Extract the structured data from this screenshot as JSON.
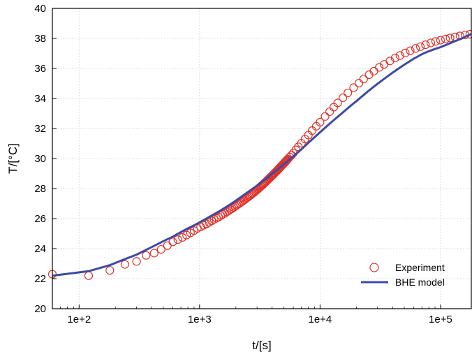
{
  "chart_data": {
    "type": "scatter",
    "title": "",
    "xlabel": "t/[s]",
    "ylabel": "T/[°C]",
    "xscale": "log",
    "xlim": [
      60,
      180000
    ],
    "ylim": [
      20,
      40
    ],
    "grid": true,
    "legend_position": "bottom-right",
    "x_ticks": [
      {
        "value": 100,
        "label": "1e+2"
      },
      {
        "value": 1000,
        "label": "1e+3"
      },
      {
        "value": 10000,
        "label": "1e+4"
      },
      {
        "value": 100000,
        "label": "1e+5"
      }
    ],
    "y_ticks": [
      20,
      22,
      24,
      26,
      28,
      30,
      32,
      34,
      36,
      38,
      40
    ],
    "series": [
      {
        "name": "Experiment",
        "marker": "open-circle",
        "color": "#e0322a",
        "x": [
          60,
          120,
          180,
          240,
          300,
          360,
          420,
          480,
          540,
          600,
          660,
          720,
          780,
          840,
          900,
          960,
          1020,
          1080,
          1140,
          1200,
          1260,
          1320,
          1380,
          1440,
          1500,
          1560,
          1620,
          1680,
          1740,
          1800,
          1860,
          1920,
          1980,
          2040,
          2100,
          2160,
          2220,
          2280,
          2340,
          2400,
          2460,
          2520,
          2580,
          2640,
          2700,
          2760,
          2820,
          2880,
          2940,
          3000,
          3060,
          3120,
          3180,
          3240,
          3300,
          3360,
          3420,
          3480,
          3540,
          3600,
          3660,
          3720,
          3780,
          3840,
          3900,
          3960,
          4020,
          4080,
          4140,
          4200,
          4260,
          4320,
          4380,
          4440,
          4500,
          4560,
          4620,
          4680,
          4740,
          4800,
          4860,
          4920,
          4980,
          5040,
          5100,
          5160,
          5220,
          5280,
          5340,
          5400,
          5600,
          5800,
          6000,
          6300,
          6600,
          7000,
          7500,
          8000,
          8600,
          9300,
          10000,
          11000,
          12000,
          13000,
          14000,
          15500,
          17000,
          19000,
          21000,
          23000,
          25500,
          28000,
          31000,
          34000,
          38000,
          42000,
          46000,
          51000,
          56000,
          62000,
          68000,
          75000,
          83000,
          91000,
          100000,
          110000,
          120000,
          132000,
          145000,
          160000,
          175000
        ],
        "y": [
          22.3,
          22.2,
          22.55,
          22.95,
          23.15,
          23.55,
          23.7,
          23.95,
          24.2,
          24.45,
          24.6,
          24.75,
          24.9,
          25.05,
          25.2,
          25.35,
          25.45,
          25.55,
          25.65,
          25.75,
          25.85,
          25.95,
          26.03,
          26.1,
          26.2,
          26.28,
          26.35,
          26.45,
          26.52,
          26.6,
          26.67,
          26.75,
          26.82,
          26.9,
          26.97,
          27.03,
          27.1,
          27.17,
          27.23,
          27.3,
          27.37,
          27.43,
          27.5,
          27.55,
          27.62,
          27.68,
          27.74,
          27.8,
          27.86,
          27.92,
          27.98,
          28.04,
          28.1,
          28.16,
          28.22,
          28.27,
          28.33,
          28.39,
          28.44,
          28.5,
          28.56,
          28.61,
          28.67,
          28.72,
          28.78,
          28.83,
          28.88,
          28.93,
          28.98,
          29.03,
          29.08,
          29.13,
          29.18,
          29.23,
          29.28,
          29.33,
          29.38,
          29.43,
          29.47,
          29.52,
          29.57,
          29.61,
          29.66,
          29.7,
          29.75,
          29.79,
          29.83,
          29.88,
          29.92,
          29.96,
          30.1,
          30.23,
          30.37,
          30.58,
          30.78,
          31.02,
          31.3,
          31.56,
          31.86,
          32.15,
          32.42,
          32.8,
          33.12,
          33.42,
          33.7,
          34.05,
          34.37,
          34.72,
          35.02,
          35.3,
          35.58,
          35.82,
          36.07,
          36.27,
          36.5,
          36.7,
          36.86,
          37.03,
          37.18,
          37.33,
          37.45,
          37.58,
          37.7,
          37.8,
          37.88,
          37.96,
          38.03,
          38.1,
          38.17,
          38.23,
          38.28
        ]
      },
      {
        "name": "BHE model",
        "marker": "line",
        "color": "#3a4aa8",
        "x": [
          60,
          120,
          180,
          240,
          300,
          400,
          500,
          600,
          700,
          800,
          900,
          1000,
          1200,
          1500,
          1800,
          2000,
          2500,
          3000,
          3500,
          4000,
          4500,
          5000,
          5500,
          6000,
          7000,
          8000,
          9000,
          10000,
          12000,
          15000,
          18000,
          20000,
          25000,
          30000,
          35000,
          40000,
          50000,
          60000,
          70000,
          80000,
          90000,
          100000,
          120000,
          150000,
          180000
        ],
        "y": [
          22.2,
          22.5,
          22.9,
          23.3,
          23.6,
          24.1,
          24.5,
          24.8,
          25.1,
          25.35,
          25.55,
          25.75,
          26.1,
          26.55,
          26.95,
          27.2,
          27.75,
          28.2,
          28.6,
          28.98,
          29.3,
          29.62,
          29.9,
          30.15,
          30.62,
          31.05,
          31.42,
          31.75,
          32.32,
          32.98,
          33.52,
          33.82,
          34.48,
          34.98,
          35.38,
          35.72,
          36.25,
          36.65,
          36.95,
          37.15,
          37.3,
          37.42,
          37.68,
          38.0,
          38.3
        ]
      }
    ]
  }
}
